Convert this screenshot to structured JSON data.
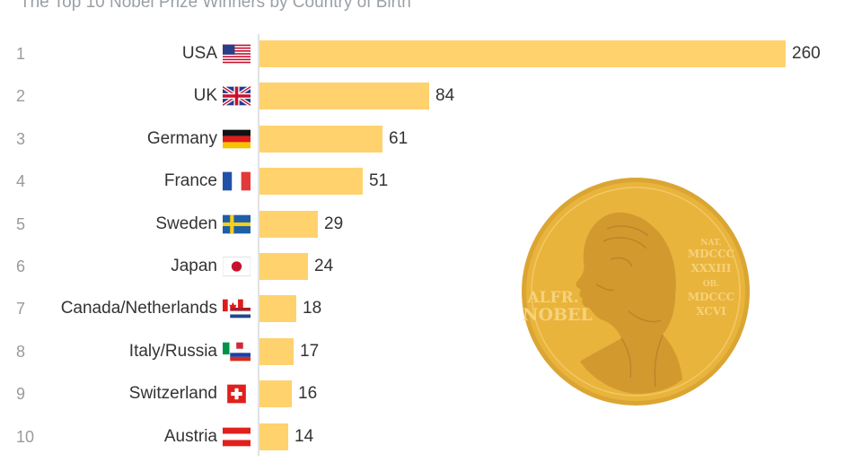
{
  "chart_data": {
    "type": "bar",
    "orientation": "horizontal",
    "subtitle": "The Top 10 Nobel Prize Winners by Country of Birth",
    "ranks": [
      "1",
      "2",
      "3",
      "4",
      "5",
      "6",
      "7",
      "8",
      "9",
      "10"
    ],
    "categories": [
      "USA",
      "UK",
      "Germany",
      "France",
      "Sweden",
      "Japan",
      "Canada/Netherlands",
      "Italy/Russia",
      "Switzerland",
      "Austria"
    ],
    "values": [
      260,
      84,
      61,
      51,
      29,
      24,
      18,
      17,
      16,
      14
    ],
    "flags": [
      "usa-flag-icon",
      "uk-flag-icon",
      "germany-flag-icon",
      "france-flag-icon",
      "sweden-flag-icon",
      "japan-flag-icon",
      "canada-netherlands-flag-icon",
      "italy-russia-flag-icon",
      "switzerland-flag-icon",
      "austria-flag-icon"
    ],
    "xlim": [
      0,
      260
    ],
    "grid": false,
    "bar_color": "#ffd26e"
  },
  "medal": {
    "icon": "nobel-medal-icon",
    "inscription_left": [
      "ALFR.",
      "NOBEL"
    ],
    "inscription_right": [
      "NAT.",
      "MDCCC",
      "XXXIII",
      "OB.",
      "MDCCC",
      "XCVI"
    ],
    "color": "#e9b43c"
  }
}
